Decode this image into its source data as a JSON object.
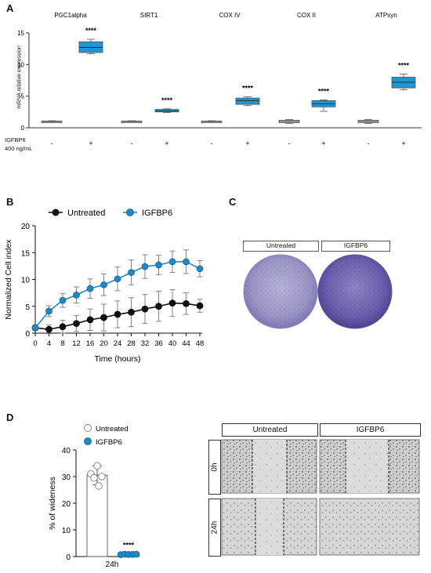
{
  "panel_labels": {
    "A": "A",
    "B": "B",
    "C": "C",
    "D": "D"
  },
  "panelA": {
    "ylabel": "mRNA relative expression",
    "treatment_label_line1": "IGFBP6",
    "treatment_label_line2": "400 ng/mL",
    "minus": "-",
    "plus": "+"
  },
  "panelB": {
    "legend": {
      "untreated": "Untreated",
      "igfbp6": "IGFBP6"
    }
  },
  "panelC": {
    "untreated_label": "Untreated",
    "igfbp6_label": "IGFBP6"
  },
  "panelD": {
    "legend": {
      "untreated": "Untreated",
      "igfbp6": "IGFBP6"
    },
    "col_untreated": "Untreated",
    "col_igfbp6": "IGFBP6",
    "row_0h": "0h",
    "row_24h": "24h"
  },
  "chart_data": [
    {
      "type": "box",
      "ylabel": "mRNA relative expression",
      "ylim": [
        0,
        15
      ],
      "yticks": [
        0,
        5,
        10,
        15
      ],
      "gene_labels": [
        "PGC1alpha",
        "SIRT1",
        "COX IV",
        "COX II",
        "ATPsyn"
      ],
      "conditions": [
        "-",
        "+"
      ],
      "significance": "****",
      "colors": {
        "control": "#d9d9d9",
        "treated": "#1f97d4"
      },
      "groups": [
        {
          "gene": "PGC1alpha",
          "control": {
            "min": 0.9,
            "q1": 0.95,
            "median": 1.0,
            "q3": 1.05,
            "max": 1.1
          },
          "treated": {
            "min": 11.7,
            "q1": 11.9,
            "median": 12.7,
            "q3": 13.6,
            "max": 14.0
          }
        },
        {
          "gene": "SIRT1",
          "control": {
            "min": 0.9,
            "q1": 0.95,
            "median": 1.0,
            "q3": 1.05,
            "max": 1.1
          },
          "treated": {
            "min": 2.4,
            "q1": 2.5,
            "median": 2.7,
            "q3": 2.9,
            "max": 3.0
          }
        },
        {
          "gene": "COX IV",
          "control": {
            "min": 0.9,
            "q1": 0.95,
            "median": 1.0,
            "q3": 1.05,
            "max": 1.1
          },
          "treated": {
            "min": 3.5,
            "q1": 3.7,
            "median": 4.3,
            "q3": 4.7,
            "max": 4.9
          }
        },
        {
          "gene": "COX II",
          "control": {
            "min": 0.7,
            "q1": 0.8,
            "median": 1.0,
            "q3": 1.2,
            "max": 1.3
          },
          "treated": {
            "min": 2.6,
            "q1": 3.3,
            "median": 3.8,
            "q3": 4.3,
            "max": 4.4
          }
        },
        {
          "gene": "ATPsyn",
          "control": {
            "min": 0.7,
            "q1": 0.8,
            "median": 1.0,
            "q3": 1.2,
            "max": 1.3
          },
          "treated": {
            "min": 6.0,
            "q1": 6.3,
            "median": 7.2,
            "q3": 8.0,
            "max": 8.5
          }
        }
      ]
    },
    {
      "type": "line",
      "xlabel": "Time (hours)",
      "ylabel": "Normalized Cell index",
      "xlim": [
        0,
        48
      ],
      "ylim": [
        0,
        20
      ],
      "xticks": [
        0,
        4,
        8,
        12,
        16,
        20,
        24,
        28,
        32,
        36,
        40,
        44,
        48
      ],
      "yticks": [
        0,
        5,
        10,
        15,
        20
      ],
      "x": [
        0,
        4,
        8,
        12,
        16,
        20,
        24,
        28,
        32,
        36,
        40,
        44,
        48
      ],
      "series": [
        {
          "name": "Untreated",
          "color": "#111111",
          "values": [
            1.0,
            0.7,
            1.2,
            1.8,
            2.5,
            2.9,
            3.5,
            3.9,
            4.5,
            5.0,
            5.6,
            5.5,
            5.1
          ],
          "errors": [
            0.5,
            0.8,
            1.2,
            1.5,
            2.0,
            2.5,
            2.5,
            2.7,
            2.7,
            2.8,
            2.5,
            2.0,
            1.2
          ]
        },
        {
          "name": "IGFBP6",
          "color": "#1f88c6",
          "values": [
            1.0,
            4.1,
            6.1,
            7.1,
            8.3,
            9.0,
            10.1,
            11.3,
            12.4,
            12.7,
            13.3,
            13.3,
            12.0
          ],
          "errors": [
            0.3,
            1.0,
            1.3,
            1.5,
            1.8,
            2.0,
            2.2,
            2.3,
            2.2,
            1.8,
            2.0,
            2.2,
            1.5
          ]
        }
      ]
    },
    {
      "type": "bar",
      "ylabel": "% of wideness",
      "categories": [
        "24h"
      ],
      "ylim": [
        0,
        40
      ],
      "yticks": [
        0,
        10,
        20,
        30,
        40
      ],
      "significance": "****",
      "series": [
        {
          "name": "Untreated",
          "values": [
            30.5
          ],
          "error": 3.5,
          "points": [
            34,
            31,
            30,
            26.5,
            29.5
          ]
        },
        {
          "name": "IGFBP6",
          "values": [
            0.5
          ],
          "error": 0.3,
          "points": [
            0.4,
            0.6,
            0.5,
            0.5,
            0.6
          ]
        }
      ]
    }
  ]
}
